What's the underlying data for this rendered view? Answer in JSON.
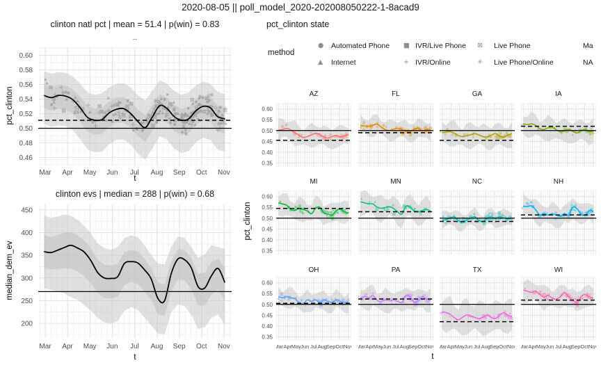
{
  "title": "2020-08-05 || poll_model_2020-202008050222-1-8acad9",
  "legend": {
    "title": "method",
    "items": [
      {
        "glyph": "●",
        "label": "Automated Phone"
      },
      {
        "glyph": "▲",
        "label": "Internet"
      },
      {
        "glyph": "■",
        "label": "IVR/Live Phone"
      },
      {
        "glyph": "+",
        "label": "IVR/Online"
      },
      {
        "glyph": "⊠",
        "label": "Live Phone"
      },
      {
        "glyph": "✳",
        "label": "Live Phone/Online"
      },
      {
        "glyph": "",
        "label": "Ma"
      },
      {
        "glyph": "",
        "label": "NA"
      }
    ]
  },
  "chart_data": [
    {
      "id": "national_pct",
      "type": "line",
      "title": "clinton natl pct | mean = 51.4 | p(win) = 0.83",
      "strip_label": "--",
      "xlabel": "t",
      "ylabel": "pct_clinton",
      "x_ticks": [
        "Mar",
        "Apr",
        "May",
        "Jun",
        "Jul",
        "Aug",
        "Sep",
        "Oct",
        "Nov"
      ],
      "yticks": [
        0.46,
        0.48,
        0.5,
        0.52,
        0.54,
        0.56,
        0.58,
        0.6
      ],
      "ylim": [
        0.449,
        0.611
      ],
      "solid_hline": 0.5,
      "dashed_hline": 0.511,
      "line_color": "#000000",
      "line": [
        0.545,
        0.542,
        0.545,
        0.544,
        0.539,
        0.528,
        0.515,
        0.511,
        0.512,
        0.521,
        0.526,
        0.527,
        0.52,
        0.509,
        0.501,
        0.516,
        0.531,
        0.527,
        0.516,
        0.511,
        0.513,
        0.524,
        0.53,
        0.528,
        0.516,
        0.513
      ],
      "ribbon_upper": [
        0.578,
        0.575,
        0.577,
        0.576,
        0.571,
        0.561,
        0.549,
        0.546,
        0.548,
        0.556,
        0.561,
        0.562,
        0.556,
        0.545,
        0.538,
        0.552,
        0.566,
        0.561,
        0.551,
        0.546,
        0.549,
        0.559,
        0.564,
        0.561,
        0.55,
        0.547
      ],
      "ribbon_lower": [
        0.506,
        0.502,
        0.504,
        0.503,
        0.497,
        0.485,
        0.471,
        0.467,
        0.468,
        0.478,
        0.484,
        0.485,
        0.477,
        0.465,
        0.457,
        0.473,
        0.489,
        0.484,
        0.472,
        0.466,
        0.469,
        0.481,
        0.487,
        0.484,
        0.471,
        0.468
      ],
      "points_n": 230
    },
    {
      "id": "median_dem_ev",
      "type": "line",
      "title": "clinton evs | median = 288 | p(win) = 0.68",
      "xlabel": "t",
      "ylabel": "median_dem_ev",
      "x_ticks": [
        "Mar",
        "Apr",
        "May",
        "Jun",
        "Jul",
        "Aug",
        "Sep",
        "Oct",
        "Nov"
      ],
      "yticks": [
        200,
        250,
        300,
        350,
        400,
        450
      ],
      "ylim": [
        168,
        462
      ],
      "solid_hline": 270,
      "line_color": "#000000",
      "line": [
        358,
        356,
        361,
        367,
        372,
        366,
        357,
        338,
        312,
        300,
        299,
        303,
        332,
        336,
        333,
        318,
        298,
        255,
        250,
        310,
        342,
        340,
        322,
        281,
        278,
        305,
        321,
        290
      ],
      "ribbon_upper": [
        438,
        433,
        435,
        440,
        437,
        428,
        415,
        398,
        376,
        366,
        362,
        368,
        388,
        394,
        390,
        372,
        350,
        332,
        330,
        368,
        392,
        388,
        368,
        344,
        352,
        372,
        368,
        363
      ],
      "ribbon_lower": [
        278,
        274,
        270,
        266,
        258,
        252,
        240,
        228,
        212,
        202,
        200,
        205,
        228,
        236,
        230,
        212,
        196,
        178,
        176,
        225,
        242,
        238,
        218,
        188,
        192,
        212,
        220,
        196
      ],
      "points_n": 0
    },
    {
      "id": "state_facets",
      "type": "line-facets",
      "title": "pct_clinton state",
      "xlabel": "t",
      "ylabel": "pct_clinton",
      "x_ticks": [
        "Mar",
        "Apr",
        "May",
        "Jun",
        "Jul",
        "Aug",
        "Sep",
        "Oct",
        "Nov"
      ],
      "yticks": [
        0.35,
        0.4,
        0.45,
        0.5,
        0.55,
        0.6
      ],
      "ylim": [
        0.332,
        0.628
      ],
      "solid_hline": 0.5,
      "facets": [
        {
          "label": "AZ",
          "color": "#F8766D",
          "dashed_hline": 0.455,
          "band": 0.05,
          "n_points": 40,
          "seed": 1,
          "line": [
            0.502,
            0.505,
            0.51,
            0.503,
            0.49,
            0.478,
            0.468,
            0.472,
            0.48,
            0.487,
            0.482,
            0.47,
            0.465,
            0.472,
            0.478,
            0.47,
            0.476,
            0.482
          ]
        },
        {
          "label": "FL",
          "color": "#DE8C00",
          "dashed_hline": 0.49,
          "band": 0.045,
          "n_points": 85,
          "seed": 2,
          "line": [
            0.524,
            0.521,
            0.519,
            0.524,
            0.53,
            0.516,
            0.505,
            0.5,
            0.506,
            0.511,
            0.505,
            0.497,
            0.495,
            0.506,
            0.511,
            0.499,
            0.505,
            0.502
          ]
        },
        {
          "label": "GA",
          "color": "#B79F00",
          "dashed_hline": 0.455,
          "band": 0.055,
          "n_points": 45,
          "seed": 3,
          "line": [
            0.49,
            0.493,
            0.495,
            0.488,
            0.477,
            0.472,
            0.476,
            0.481,
            0.486,
            0.479,
            0.472,
            0.47,
            0.479,
            0.486,
            0.474,
            0.47,
            0.48,
            0.486
          ]
        },
        {
          "label": "IA",
          "color": "#7CAE00",
          "dashed_hline": 0.52,
          "band": 0.052,
          "n_points": 30,
          "seed": 4,
          "line": [
            0.531,
            0.528,
            0.531,
            0.524,
            0.509,
            0.505,
            0.513,
            0.516,
            0.504,
            0.494,
            0.5,
            0.506,
            0.496,
            0.489,
            0.5,
            0.506,
            0.495,
            0.499
          ]
        },
        {
          "label": "MI",
          "color": "#00BA38",
          "dashed_hline": 0.545,
          "band": 0.05,
          "n_points": 55,
          "seed": 5,
          "line": [
            0.571,
            0.566,
            0.56,
            0.541,
            0.536,
            0.546,
            0.54,
            0.534,
            0.52,
            0.546,
            0.551,
            0.524,
            0.519,
            0.514,
            0.536,
            0.541,
            0.529,
            0.524
          ]
        },
        {
          "label": "MN",
          "color": "#00C08B",
          "dashed_hline": 0.53,
          "band": 0.055,
          "n_points": 30,
          "seed": 6,
          "line": [
            0.576,
            0.571,
            0.566,
            0.566,
            0.551,
            0.546,
            0.549,
            0.553,
            0.545,
            0.529,
            0.519,
            0.556,
            0.551,
            0.534,
            0.529,
            0.536,
            0.541,
            0.531
          ]
        },
        {
          "label": "NC",
          "color": "#00BFC4",
          "dashed_hline": 0.485,
          "band": 0.04,
          "n_points": 90,
          "seed": 7,
          "line": [
            0.491,
            0.493,
            0.501,
            0.506,
            0.489,
            0.479,
            0.491,
            0.501,
            0.506,
            0.489,
            0.484,
            0.501,
            0.506,
            0.499,
            0.506,
            0.501,
            0.496,
            0.501
          ]
        },
        {
          "label": "NH",
          "color": "#00B4F0",
          "dashed_hline": 0.515,
          "band": 0.05,
          "n_points": 55,
          "seed": 8,
          "line": [
            0.556,
            0.554,
            0.557,
            0.539,
            0.514,
            0.521,
            0.514,
            0.521,
            0.514,
            0.509,
            0.521,
            0.514,
            0.551,
            0.544,
            0.519,
            0.514,
            0.536,
            0.529
          ]
        },
        {
          "label": "OH",
          "color": "#619CFF",
          "dashed_hline": 0.505,
          "band": 0.045,
          "n_points": 60,
          "seed": 9,
          "line": [
            0.536,
            0.531,
            0.536,
            0.531,
            0.526,
            0.509,
            0.504,
            0.521,
            0.514,
            0.521,
            0.509,
            0.521,
            0.514,
            0.509,
            0.521,
            0.514,
            0.509,
            0.512
          ]
        },
        {
          "label": "PA",
          "color": "#C77CFF",
          "dashed_hline": 0.525,
          "band": 0.05,
          "n_points": 70,
          "seed": 10,
          "line": [
            0.531,
            0.536,
            0.531,
            0.541,
            0.519,
            0.514,
            0.521,
            0.517,
            0.521,
            0.514,
            0.509,
            0.541,
            0.536,
            0.509,
            0.519,
            0.536,
            0.524,
            0.519
          ]
        },
        {
          "label": "TX",
          "color": "#F564E3",
          "dashed_hline": 0.42,
          "band": 0.075,
          "n_points": 30,
          "seed": 11,
          "line": [
            0.466,
            0.462,
            0.454,
            0.439,
            0.429,
            0.441,
            0.451,
            0.446,
            0.439,
            0.434,
            0.441,
            0.451,
            0.439,
            0.434,
            0.451,
            0.461,
            0.449,
            0.444
          ]
        },
        {
          "label": "WI",
          "color": "#FF64B0",
          "dashed_hline": 0.52,
          "band": 0.05,
          "n_points": 55,
          "seed": 12,
          "line": [
            0.566,
            0.561,
            0.556,
            0.561,
            0.546,
            0.534,
            0.541,
            0.529,
            0.524,
            0.536,
            0.556,
            0.534,
            0.519,
            0.509,
            0.536,
            0.546,
            0.534,
            0.529
          ]
        }
      ]
    }
  ]
}
